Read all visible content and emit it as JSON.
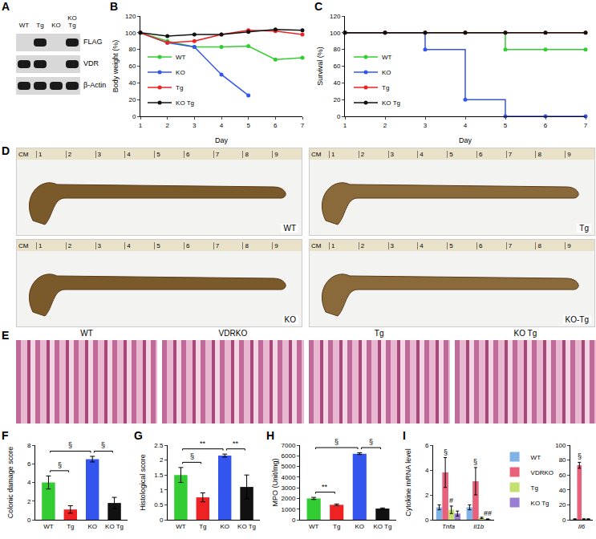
{
  "chart_data": [
    {
      "type": "blot",
      "panel": "A",
      "columns": [
        "WT",
        "Tg",
        "KO",
        "KO Tg"
      ],
      "rows": [
        {
          "label": "FLAG",
          "bands": [
            0,
            1,
            0,
            1
          ]
        },
        {
          "label": "VDR",
          "bands": [
            1,
            1,
            0,
            1
          ]
        },
        {
          "label": "β-Actin",
          "bands": [
            1,
            1,
            1,
            1
          ]
        }
      ]
    },
    {
      "type": "line",
      "panel": "B",
      "x_label": "Day",
      "y_label": "Body weight (%)",
      "x": [
        1,
        2,
        3,
        4,
        5,
        6,
        7
      ],
      "xlim": [
        1,
        7
      ],
      "xticks": [
        1,
        2,
        3,
        4,
        5,
        6,
        7
      ],
      "ylim": [
        0,
        120
      ],
      "yticks": [
        0,
        20,
        40,
        60,
        80,
        100,
        120
      ],
      "legend": "bottom left",
      "marker": "circle",
      "series": [
        {
          "name": "WT",
          "color": "#33cc33",
          "values": [
            100,
            90,
            83,
            83,
            84,
            68,
            70
          ]
        },
        {
          "name": "KO",
          "color": "#3355ee",
          "values": [
            100,
            88,
            83,
            50,
            25,
            null,
            null
          ]
        },
        {
          "name": "Tg",
          "color": "#ee2222",
          "values": [
            100,
            88,
            90,
            98,
            103,
            102,
            98
          ]
        },
        {
          "name": "KO Tg",
          "color": "#111111",
          "values": [
            100,
            96,
            98,
            98,
            101,
            104,
            103
          ]
        }
      ]
    },
    {
      "type": "line",
      "panel": "C",
      "x_label": "Day",
      "y_label": "Survival (%)",
      "x": [
        1,
        2,
        3,
        4,
        5,
        6,
        7
      ],
      "xlim": [
        1,
        7
      ],
      "xticks": [
        1,
        2,
        3,
        4,
        5,
        6,
        7
      ],
      "ylim": [
        0,
        120
      ],
      "yticks": [
        0,
        20,
        40,
        60,
        80,
        100,
        120
      ],
      "legend": "bottom left",
      "marker": "circle",
      "line_style": "step",
      "series": [
        {
          "name": "WT",
          "color": "#33cc33",
          "values": [
            100,
            100,
            100,
            100,
            80,
            80,
            80
          ]
        },
        {
          "name": "KO",
          "color": "#3355ee",
          "values": [
            100,
            100,
            80,
            20,
            0,
            0,
            0
          ]
        },
        {
          "name": "Tg",
          "color": "#ee2222",
          "values": [
            100,
            100,
            100,
            100,
            100,
            100,
            100
          ]
        },
        {
          "name": "KO Tg",
          "color": "#111111",
          "values": [
            100,
            100,
            100,
            100,
            100,
            100,
            100
          ]
        }
      ]
    },
    {
      "type": "photo",
      "panel": "D",
      "labels": [
        "WT",
        "Tg",
        "KO",
        "KO-Tg"
      ],
      "ruler": {
        "label": "CM",
        "marks": [
          1,
          2,
          3,
          4,
          5,
          6,
          7,
          8,
          9
        ]
      }
    },
    {
      "type": "histology",
      "panel": "E",
      "labels": [
        "WT",
        "VDRKO",
        "Tg",
        "KO Tg"
      ]
    },
    {
      "type": "bar",
      "panel": "F",
      "y_label": "Colonic damage score",
      "categories": [
        "WT",
        "Tg",
        "KO",
        "KO Tg"
      ],
      "values": [
        4.0,
        1.1,
        6.5,
        1.8
      ],
      "errors": [
        0.7,
        0.4,
        0.3,
        0.6
      ],
      "colors": [
        "#33cc33",
        "#ee2222",
        "#3355ee",
        "#111111"
      ],
      "ylim": [
        0,
        8
      ],
      "yticks": [
        0,
        2,
        4,
        6,
        8
      ],
      "annotations": [
        {
          "from": "WT",
          "to": "Tg",
          "text": "§"
        },
        {
          "from": "WT",
          "to": "KO",
          "text": "§"
        },
        {
          "from": "KO",
          "to": "KO Tg",
          "text": "§"
        }
      ]
    },
    {
      "type": "bar",
      "panel": "G",
      "y_label": "Histological score",
      "categories": [
        "WT",
        "Tg",
        "KO",
        "KO Tg"
      ],
      "values": [
        1.5,
        0.75,
        2.15,
        1.1
      ],
      "errors": [
        0.25,
        0.15,
        0.05,
        0.4
      ],
      "colors": [
        "#33cc33",
        "#ee2222",
        "#3355ee",
        "#111111"
      ],
      "ylim": [
        0,
        2.5
      ],
      "yticks": [
        0,
        0.5,
        1,
        1.5,
        2,
        2.5
      ],
      "annotations": [
        {
          "from": "WT",
          "to": "Tg",
          "text": "§"
        },
        {
          "from": "WT",
          "to": "KO",
          "text": "**"
        },
        {
          "from": "KO",
          "to": "KO Tg",
          "text": "**"
        }
      ]
    },
    {
      "type": "bar",
      "panel": "H",
      "y_label": "MPO (Unit/mg)",
      "categories": [
        "WT",
        "Tg",
        "KO",
        "KO Tg"
      ],
      "values": [
        2000,
        1400,
        6200,
        1050
      ],
      "errors": [
        100,
        80,
        80,
        60
      ],
      "colors": [
        "#33cc33",
        "#ee2222",
        "#3355ee",
        "#111111"
      ],
      "ylim": [
        0,
        7000
      ],
      "yticks": [
        0,
        1000,
        2000,
        3000,
        4000,
        5000,
        6000,
        7000
      ],
      "annotations": [
        {
          "from": "WT",
          "to": "Tg",
          "text": "**"
        },
        {
          "from": "WT",
          "to": "KO",
          "text": "§"
        },
        {
          "from": "KO",
          "to": "KO Tg",
          "text": "§"
        }
      ]
    },
    {
      "type": "bar",
      "panel": "I",
      "y_label": "Cytokine mRNA level",
      "legend": "top right",
      "groups": [
        {
          "categories": [
            "Tnfa",
            "Il1b"
          ],
          "ylim": [
            0,
            6
          ],
          "yticks": [
            0,
            2,
            4,
            6
          ]
        },
        {
          "categories": [
            "Il6"
          ],
          "ylim": [
            0,
            100
          ],
          "yticks": [
            0,
            20,
            40,
            60,
            80,
            100
          ]
        }
      ],
      "series": [
        {
          "name": "WT",
          "color": "#7fb2e5",
          "values": [
            1.0,
            1.0,
            1.0
          ],
          "errors": [
            0.2,
            0.2,
            0.2
          ]
        },
        {
          "name": "VDRKO",
          "color": "#e8607a",
          "values": [
            3.8,
            3.1,
            73
          ],
          "errors": [
            1.2,
            1.1,
            4
          ]
        },
        {
          "name": "Tg",
          "color": "#c4e070",
          "values": [
            0.8,
            0.15,
            1.0
          ],
          "errors": [
            0.3,
            0.05,
            0.2
          ]
        },
        {
          "name": "KO Tg",
          "color": "#9a7fd0",
          "values": [
            0.5,
            0.05,
            1.0
          ],
          "errors": [
            0.2,
            0.02,
            0.2
          ]
        }
      ],
      "annotations": [
        {
          "category": "Tnfa",
          "series": "VDRKO",
          "text": "§"
        },
        {
          "category": "Tnfa",
          "series": "Tg",
          "text": "#"
        },
        {
          "category": "Il1b",
          "series": "VDRKO",
          "text": "§"
        },
        {
          "category": "Il1b",
          "series": "KO Tg",
          "text": "##"
        },
        {
          "category": "Il6",
          "series": "VDRKO",
          "text": "§"
        }
      ]
    }
  ]
}
